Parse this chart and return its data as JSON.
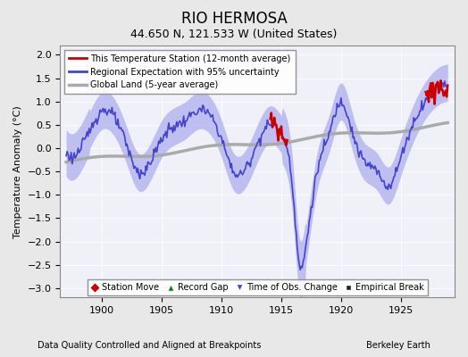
{
  "title": "RIO HERMOSA",
  "subtitle": "44.650 N, 121.533 W (United States)",
  "xlabel_left": "Data Quality Controlled and Aligned at Breakpoints",
  "xlabel_right": "Berkeley Earth",
  "ylabel": "Temperature Anomaly (°C)",
  "xlim": [
    1896.5,
    1929.5
  ],
  "ylim": [
    -3.2,
    2.2
  ],
  "yticks": [
    -3,
    -2.5,
    -2,
    -1.5,
    -1,
    -0.5,
    0,
    0.5,
    1,
    1.5,
    2
  ],
  "xticks": [
    1900,
    1905,
    1910,
    1915,
    1920,
    1925
  ],
  "bg_color": "#e8e8e8",
  "plot_bg_color": "#f0f0f8",
  "regional_color": "#4444cc",
  "regional_fill_color": "#aaaaee",
  "station_color": "#cc0000",
  "global_color": "#aaaaaa",
  "legend_station": "This Temperature Station (12-month average)",
  "legend_regional": "Regional Expectation with 95% uncertainty",
  "legend_global": "Global Land (5-year average)"
}
